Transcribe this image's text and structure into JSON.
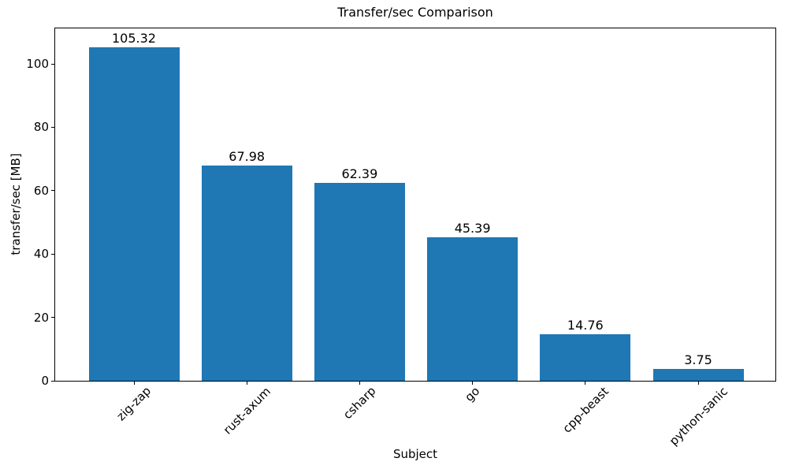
{
  "chart_data": {
    "type": "bar",
    "title": "Transfer/sec Comparison",
    "xlabel": "Subject",
    "ylabel": "transfer/sec [MB]",
    "categories": [
      "zig-zap",
      "rust-axum",
      "csharp",
      "go",
      "cpp-beast",
      "python-sanic"
    ],
    "values": [
      105.32,
      67.98,
      62.39,
      45.39,
      14.76,
      3.75
    ],
    "value_labels": [
      "105.32",
      "67.98",
      "62.39",
      "45.39",
      "14.76",
      "3.75"
    ],
    "yticks": [
      0,
      20,
      40,
      60,
      80,
      100
    ],
    "ylim": [
      0,
      111.4
    ],
    "bar_color": "#1f77b4",
    "text_color": "#000000",
    "background_color": "#ffffff",
    "grid": false,
    "legend_position": "none"
  }
}
